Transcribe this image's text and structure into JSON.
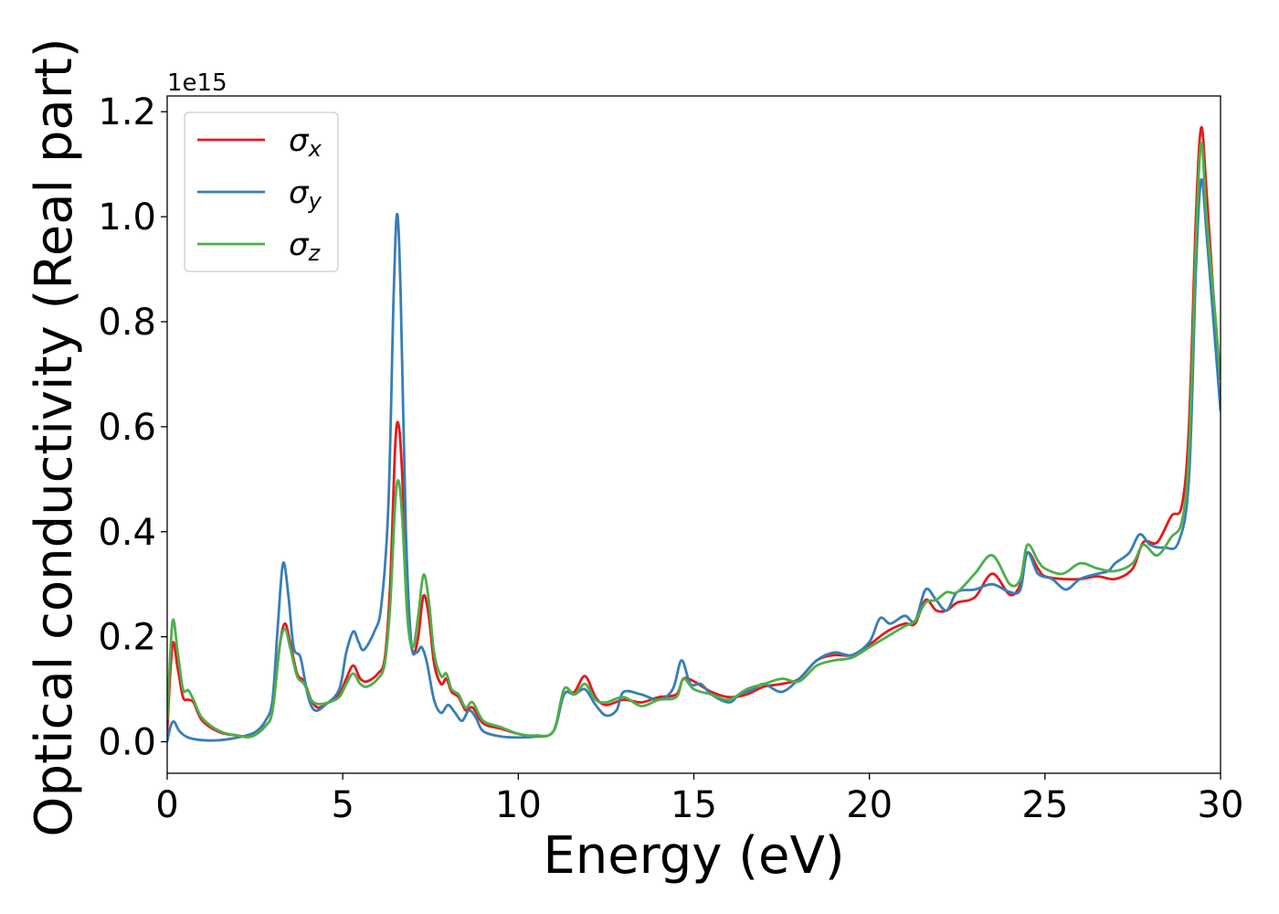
{
  "chart_data": {
    "type": "line",
    "xlabel": "Energy (eV)",
    "ylabel": "Optical conductivity (Real part)",
    "y_offset_label": "1e15",
    "xlim": [
      0,
      30
    ],
    "ylim": [
      -0.06,
      1.23
    ],
    "x_ticks": [
      "0",
      "5",
      "10",
      "15",
      "20",
      "25",
      "30"
    ],
    "y_ticks": [
      "0.0",
      "0.2",
      "0.4",
      "0.6",
      "0.8",
      "1.0",
      "1.2"
    ],
    "grid": false,
    "legend_position": "top-left",
    "series": [
      {
        "name": "σx",
        "symbol": "σ",
        "subscript": "x",
        "color": "#e41a1c",
        "points": [
          [
            0,
            0.02
          ],
          [
            0.15,
            0.185
          ],
          [
            0.3,
            0.14
          ],
          [
            0.45,
            0.085
          ],
          [
            0.6,
            0.08
          ],
          [
            0.75,
            0.075
          ],
          [
            1.0,
            0.04
          ],
          [
            1.5,
            0.018
          ],
          [
            2.0,
            0.012
          ],
          [
            2.4,
            0.01
          ],
          [
            2.8,
            0.03
          ],
          [
            3.0,
            0.06
          ],
          [
            3.2,
            0.18
          ],
          [
            3.35,
            0.225
          ],
          [
            3.5,
            0.19
          ],
          [
            3.7,
            0.13
          ],
          [
            3.9,
            0.115
          ],
          [
            4.1,
            0.08
          ],
          [
            4.3,
            0.065
          ],
          [
            4.6,
            0.075
          ],
          [
            4.9,
            0.09
          ],
          [
            5.1,
            0.12
          ],
          [
            5.3,
            0.145
          ],
          [
            5.5,
            0.12
          ],
          [
            5.7,
            0.115
          ],
          [
            6.0,
            0.13
          ],
          [
            6.2,
            0.16
          ],
          [
            6.35,
            0.3
          ],
          [
            6.5,
            0.57
          ],
          [
            6.6,
            0.6
          ],
          [
            6.7,
            0.5
          ],
          [
            6.85,
            0.25
          ],
          [
            7.0,
            0.17
          ],
          [
            7.15,
            0.2
          ],
          [
            7.3,
            0.278
          ],
          [
            7.45,
            0.24
          ],
          [
            7.6,
            0.15
          ],
          [
            7.8,
            0.11
          ],
          [
            7.95,
            0.12
          ],
          [
            8.1,
            0.095
          ],
          [
            8.3,
            0.085
          ],
          [
            8.5,
            0.06
          ],
          [
            8.7,
            0.065
          ],
          [
            9.0,
            0.035
          ],
          [
            9.5,
            0.025
          ],
          [
            10.0,
            0.015
          ],
          [
            10.5,
            0.01
          ],
          [
            11.0,
            0.02
          ],
          [
            11.3,
            0.09
          ],
          [
            11.6,
            0.095
          ],
          [
            11.9,
            0.125
          ],
          [
            12.2,
            0.085
          ],
          [
            12.5,
            0.07
          ],
          [
            13.0,
            0.08
          ],
          [
            13.5,
            0.075
          ],
          [
            14.0,
            0.085
          ],
          [
            14.5,
            0.09
          ],
          [
            14.7,
            0.12
          ],
          [
            15.0,
            0.115
          ],
          [
            15.5,
            0.095
          ],
          [
            16.0,
            0.085
          ],
          [
            16.5,
            0.09
          ],
          [
            17.0,
            0.105
          ],
          [
            17.5,
            0.11
          ],
          [
            18.0,
            0.12
          ],
          [
            18.5,
            0.155
          ],
          [
            19.0,
            0.165
          ],
          [
            19.5,
            0.165
          ],
          [
            20.0,
            0.185
          ],
          [
            20.5,
            0.21
          ],
          [
            21.0,
            0.225
          ],
          [
            21.3,
            0.225
          ],
          [
            21.6,
            0.27
          ],
          [
            21.9,
            0.25
          ],
          [
            22.2,
            0.25
          ],
          [
            22.5,
            0.265
          ],
          [
            23.0,
            0.275
          ],
          [
            23.5,
            0.32
          ],
          [
            24.0,
            0.28
          ],
          [
            24.3,
            0.3
          ],
          [
            24.5,
            0.36
          ],
          [
            24.8,
            0.33
          ],
          [
            25.0,
            0.315
          ],
          [
            25.5,
            0.31
          ],
          [
            26.0,
            0.31
          ],
          [
            26.5,
            0.315
          ],
          [
            27.0,
            0.31
          ],
          [
            27.5,
            0.33
          ],
          [
            27.8,
            0.38
          ],
          [
            28.2,
            0.38
          ],
          [
            28.6,
            0.43
          ],
          [
            28.9,
            0.45
          ],
          [
            29.1,
            0.6
          ],
          [
            29.3,
            1.0
          ],
          [
            29.45,
            1.17
          ],
          [
            29.6,
            1.05
          ],
          [
            29.8,
            0.85
          ],
          [
            30.0,
            0.69
          ]
        ]
      },
      {
        "name": "σy",
        "symbol": "σ",
        "subscript": "y",
        "color": "#377eb8",
        "points": [
          [
            0,
            0.0
          ],
          [
            0.1,
            0.03
          ],
          [
            0.2,
            0.038
          ],
          [
            0.35,
            0.02
          ],
          [
            0.6,
            0.008
          ],
          [
            1.0,
            0.003
          ],
          [
            1.5,
            0.003
          ],
          [
            2.0,
            0.008
          ],
          [
            2.5,
            0.018
          ],
          [
            2.8,
            0.04
          ],
          [
            3.0,
            0.08
          ],
          [
            3.15,
            0.22
          ],
          [
            3.3,
            0.34
          ],
          [
            3.45,
            0.28
          ],
          [
            3.6,
            0.18
          ],
          [
            3.8,
            0.16
          ],
          [
            4.0,
            0.09
          ],
          [
            4.2,
            0.06
          ],
          [
            4.5,
            0.07
          ],
          [
            4.9,
            0.1
          ],
          [
            5.1,
            0.17
          ],
          [
            5.3,
            0.21
          ],
          [
            5.45,
            0.19
          ],
          [
            5.6,
            0.175
          ],
          [
            5.9,
            0.21
          ],
          [
            6.1,
            0.26
          ],
          [
            6.3,
            0.45
          ],
          [
            6.45,
            0.85
          ],
          [
            6.55,
            1.005
          ],
          [
            6.65,
            0.85
          ],
          [
            6.8,
            0.4
          ],
          [
            6.95,
            0.19
          ],
          [
            7.1,
            0.17
          ],
          [
            7.25,
            0.18
          ],
          [
            7.4,
            0.15
          ],
          [
            7.6,
            0.08
          ],
          [
            7.8,
            0.055
          ],
          [
            8.0,
            0.07
          ],
          [
            8.2,
            0.055
          ],
          [
            8.4,
            0.04
          ],
          [
            8.6,
            0.06
          ],
          [
            8.8,
            0.045
          ],
          [
            9.0,
            0.02
          ],
          [
            9.5,
            0.01
          ],
          [
            10.0,
            0.008
          ],
          [
            10.5,
            0.01
          ],
          [
            11.0,
            0.02
          ],
          [
            11.3,
            0.09
          ],
          [
            11.6,
            0.09
          ],
          [
            11.9,
            0.1
          ],
          [
            12.2,
            0.07
          ],
          [
            12.5,
            0.05
          ],
          [
            12.8,
            0.06
          ],
          [
            13.0,
            0.095
          ],
          [
            13.5,
            0.09
          ],
          [
            14.0,
            0.08
          ],
          [
            14.4,
            0.1
          ],
          [
            14.65,
            0.155
          ],
          [
            14.9,
            0.11
          ],
          [
            15.2,
            0.11
          ],
          [
            15.5,
            0.09
          ],
          [
            16.0,
            0.075
          ],
          [
            16.3,
            0.09
          ],
          [
            16.7,
            0.1
          ],
          [
            17.0,
            0.11
          ],
          [
            17.5,
            0.095
          ],
          [
            18.0,
            0.12
          ],
          [
            18.5,
            0.155
          ],
          [
            19.0,
            0.17
          ],
          [
            19.5,
            0.165
          ],
          [
            20.0,
            0.19
          ],
          [
            20.3,
            0.235
          ],
          [
            20.6,
            0.225
          ],
          [
            21.0,
            0.24
          ],
          [
            21.3,
            0.23
          ],
          [
            21.6,
            0.29
          ],
          [
            21.9,
            0.27
          ],
          [
            22.2,
            0.25
          ],
          [
            22.5,
            0.285
          ],
          [
            23.0,
            0.29
          ],
          [
            23.5,
            0.3
          ],
          [
            24.0,
            0.285
          ],
          [
            24.3,
            0.29
          ],
          [
            24.5,
            0.36
          ],
          [
            24.8,
            0.32
          ],
          [
            25.2,
            0.31
          ],
          [
            25.6,
            0.29
          ],
          [
            26.0,
            0.31
          ],
          [
            26.5,
            0.32
          ],
          [
            26.8,
            0.325
          ],
          [
            27.0,
            0.34
          ],
          [
            27.4,
            0.36
          ],
          [
            27.7,
            0.395
          ],
          [
            28.0,
            0.375
          ],
          [
            28.4,
            0.37
          ],
          [
            28.8,
            0.38
          ],
          [
            29.1,
            0.5
          ],
          [
            29.3,
            0.9
          ],
          [
            29.45,
            1.07
          ],
          [
            29.6,
            0.97
          ],
          [
            29.8,
            0.8
          ],
          [
            30.0,
            0.63
          ]
        ]
      },
      {
        "name": "σz",
        "symbol": "σ",
        "subscript": "z",
        "color": "#4daf4a",
        "points": [
          [
            0,
            0.04
          ],
          [
            0.15,
            0.228
          ],
          [
            0.3,
            0.17
          ],
          [
            0.45,
            0.1
          ],
          [
            0.6,
            0.098
          ],
          [
            0.75,
            0.08
          ],
          [
            1.0,
            0.045
          ],
          [
            1.5,
            0.02
          ],
          [
            2.0,
            0.012
          ],
          [
            2.4,
            0.01
          ],
          [
            2.8,
            0.03
          ],
          [
            3.0,
            0.06
          ],
          [
            3.2,
            0.18
          ],
          [
            3.35,
            0.215
          ],
          [
            3.5,
            0.18
          ],
          [
            3.7,
            0.125
          ],
          [
            3.9,
            0.11
          ],
          [
            4.1,
            0.08
          ],
          [
            4.3,
            0.072
          ],
          [
            4.6,
            0.075
          ],
          [
            4.9,
            0.085
          ],
          [
            5.1,
            0.11
          ],
          [
            5.3,
            0.13
          ],
          [
            5.5,
            0.11
          ],
          [
            5.7,
            0.105
          ],
          [
            6.0,
            0.12
          ],
          [
            6.2,
            0.15
          ],
          [
            6.35,
            0.26
          ],
          [
            6.5,
            0.46
          ],
          [
            6.6,
            0.495
          ],
          [
            6.7,
            0.42
          ],
          [
            6.85,
            0.23
          ],
          [
            7.0,
            0.18
          ],
          [
            7.15,
            0.24
          ],
          [
            7.3,
            0.318
          ],
          [
            7.45,
            0.27
          ],
          [
            7.6,
            0.17
          ],
          [
            7.8,
            0.125
          ],
          [
            7.95,
            0.13
          ],
          [
            8.1,
            0.1
          ],
          [
            8.3,
            0.09
          ],
          [
            8.5,
            0.065
          ],
          [
            8.7,
            0.075
          ],
          [
            9.0,
            0.04
          ],
          [
            9.5,
            0.028
          ],
          [
            10.0,
            0.015
          ],
          [
            10.5,
            0.012
          ],
          [
            11.0,
            0.02
          ],
          [
            11.3,
            0.1
          ],
          [
            11.6,
            0.09
          ],
          [
            11.9,
            0.11
          ],
          [
            12.2,
            0.08
          ],
          [
            12.5,
            0.075
          ],
          [
            13.0,
            0.085
          ],
          [
            13.5,
            0.068
          ],
          [
            14.0,
            0.08
          ],
          [
            14.5,
            0.085
          ],
          [
            14.7,
            0.12
          ],
          [
            15.0,
            0.1
          ],
          [
            15.5,
            0.09
          ],
          [
            16.0,
            0.08
          ],
          [
            16.5,
            0.1
          ],
          [
            17.0,
            0.11
          ],
          [
            17.5,
            0.12
          ],
          [
            18.0,
            0.115
          ],
          [
            18.5,
            0.145
          ],
          [
            19.0,
            0.155
          ],
          [
            19.5,
            0.16
          ],
          [
            20.0,
            0.18
          ],
          [
            20.5,
            0.2
          ],
          [
            21.0,
            0.22
          ],
          [
            21.3,
            0.23
          ],
          [
            21.6,
            0.265
          ],
          [
            21.9,
            0.27
          ],
          [
            22.2,
            0.285
          ],
          [
            22.5,
            0.285
          ],
          [
            23.0,
            0.32
          ],
          [
            23.5,
            0.355
          ],
          [
            24.0,
            0.3
          ],
          [
            24.3,
            0.31
          ],
          [
            24.5,
            0.375
          ],
          [
            24.8,
            0.345
          ],
          [
            25.0,
            0.33
          ],
          [
            25.5,
            0.32
          ],
          [
            26.0,
            0.34
          ],
          [
            26.5,
            0.33
          ],
          [
            27.0,
            0.325
          ],
          [
            27.5,
            0.34
          ],
          [
            27.8,
            0.375
          ],
          [
            28.2,
            0.355
          ],
          [
            28.6,
            0.39
          ],
          [
            28.9,
            0.42
          ],
          [
            29.1,
            0.55
          ],
          [
            29.3,
            0.95
          ],
          [
            29.45,
            1.14
          ],
          [
            29.6,
            1.0
          ],
          [
            29.8,
            0.85
          ],
          [
            30.0,
            0.69
          ]
        ]
      }
    ]
  }
}
